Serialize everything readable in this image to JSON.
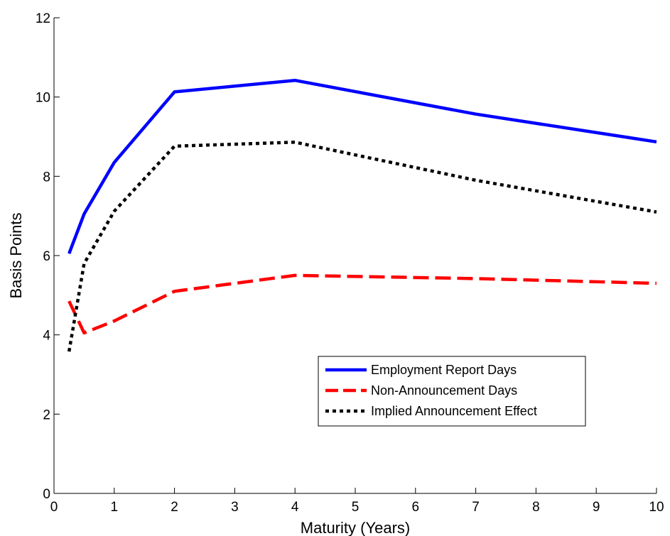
{
  "chart_data": {
    "type": "line",
    "title": "",
    "xlabel": "Maturity (Years)",
    "ylabel": "Basis Points",
    "xlim": [
      0,
      10
    ],
    "ylim": [
      0,
      12
    ],
    "xticks": [
      0,
      1,
      2,
      3,
      4,
      5,
      6,
      7,
      8,
      9,
      10
    ],
    "yticks": [
      0,
      2,
      4,
      6,
      8,
      10,
      12
    ],
    "grid": false,
    "legend_position": "lower-right",
    "series": [
      {
        "name": "Employment Report Days",
        "color": "#0000ff",
        "style": "solid",
        "x": [
          0.25,
          0.5,
          1,
          2,
          4,
          7,
          10
        ],
        "y": [
          6.05,
          7.05,
          8.35,
          10.13,
          10.42,
          9.57,
          8.87
        ]
      },
      {
        "name": "Non-Announcement Days",
        "color": "#ff0000",
        "style": "dashed",
        "x": [
          0.25,
          0.5,
          1,
          2,
          4,
          7,
          10
        ],
        "y": [
          4.85,
          4.05,
          4.35,
          5.1,
          5.5,
          5.42,
          5.3
        ]
      },
      {
        "name": "Implied Announcement Effect",
        "color": "#000000",
        "style": "dotted",
        "x": [
          0.25,
          0.5,
          1,
          2,
          4,
          7,
          10
        ],
        "y": [
          3.58,
          5.8,
          7.12,
          8.76,
          8.86,
          7.9,
          7.1
        ]
      }
    ]
  }
}
